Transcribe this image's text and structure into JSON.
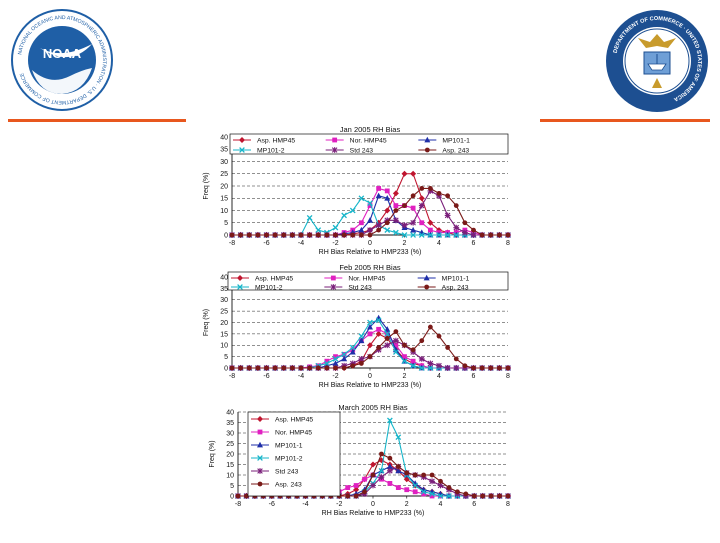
{
  "logos": {
    "noaa": {
      "center_text": "NOAA",
      "ring_text": "NATIONAL OCEANIC AND ATMOSPHERIC ADMINISTRATION · U.S. DEPARTMENT OF COMMERCE"
    },
    "commerce": {
      "ring_text": "DEPARTMENT OF COMMERCE · UNITED STATES OF AMERICA"
    }
  },
  "colors": {
    "accent": "#e8571e",
    "noaa_blue": "#1f5fa6",
    "commerce_blue": "#1d4f91"
  },
  "chart_data": [
    {
      "type": "line",
      "title": "Jan 2005 RH Bias",
      "xlabel": "RH Bias Relative to HMP233 (%)",
      "ylabel": "Freq (%)",
      "xlim": [
        -8,
        8
      ],
      "ylim": [
        0,
        40
      ],
      "xticks": [
        "-8",
        "-6",
        "-4",
        "-2",
        "0",
        "2",
        "4",
        "6",
        "8"
      ],
      "yticks": [
        "0",
        "5",
        "10",
        "15",
        "20",
        "25",
        "30",
        "35",
        "40"
      ],
      "legend": "top (3 columns)",
      "x": [
        -8,
        -7.5,
        -7,
        -6.5,
        -6,
        -5.5,
        -5,
        -4.5,
        -4,
        -3.5,
        -3,
        -2.5,
        -2,
        -1.5,
        -1,
        -0.5,
        0,
        0.5,
        1,
        1.5,
        2,
        2.5,
        3,
        3.5,
        4,
        4.5,
        5,
        5.5,
        6,
        6.5,
        7,
        7.5,
        8
      ],
      "series": [
        {
          "name": "Asp. HMP45",
          "color": "#c0152f",
          "marker": "diamond",
          "values": [
            0,
            0,
            0,
            0,
            0,
            0,
            0,
            0,
            0,
            0,
            0,
            0,
            0,
            0,
            0.5,
            1,
            2,
            5,
            10,
            17,
            25,
            25,
            15,
            5,
            2,
            1,
            0,
            0,
            0,
            0,
            0,
            0,
            0
          ]
        },
        {
          "name": "Nor. HMP45",
          "color": "#e020c0",
          "marker": "square",
          "values": [
            0,
            0,
            0,
            0,
            0,
            0,
            0,
            0,
            0,
            0,
            0,
            0,
            0,
            1,
            2,
            5,
            12,
            19,
            18,
            12,
            12,
            11,
            5,
            2,
            1,
            1,
            1,
            2,
            1,
            0,
            0,
            0,
            0
          ]
        },
        {
          "name": "MP101-1",
          "color": "#1f2fa8",
          "marker": "triangle",
          "values": [
            0,
            0,
            0,
            0,
            0,
            0,
            0,
            0,
            0,
            0,
            0,
            0,
            0,
            0.5,
            1,
            2,
            6,
            16,
            15,
            6,
            3,
            2,
            1,
            0,
            0,
            0,
            0,
            0,
            0,
            0,
            0,
            0,
            0
          ]
        },
        {
          "name": "MP101-2",
          "color": "#17b5c9",
          "marker": "x",
          "values": [
            0,
            0,
            0,
            0,
            0,
            0,
            0,
            0,
            0,
            7,
            2,
            1,
            3,
            8,
            10,
            15,
            13,
            4,
            2,
            1,
            0,
            0,
            0,
            0,
            0,
            0,
            0,
            0,
            0,
            0,
            0,
            0,
            0
          ]
        },
        {
          "name": "Std 243",
          "color": "#7a1f7a",
          "marker": "star",
          "values": [
            0,
            0,
            0,
            0,
            0,
            0,
            0,
            0,
            0,
            0,
            0,
            0,
            0,
            0,
            0,
            0,
            2,
            4,
            6,
            6,
            4,
            5,
            12,
            18,
            16,
            8,
            3,
            1,
            0,
            0,
            0,
            0,
            0
          ]
        },
        {
          "name": "Asp. 243",
          "color": "#7a1a18",
          "marker": "circle",
          "values": [
            0,
            0,
            0,
            0,
            0,
            0,
            0,
            0,
            0,
            0,
            0,
            0,
            0,
            0,
            0,
            0,
            0,
            2,
            5,
            10,
            12,
            16,
            19,
            19,
            17,
            16,
            12,
            5,
            2,
            0,
            0,
            0,
            0
          ]
        }
      ]
    },
    {
      "type": "line",
      "title": "Feb 2005 RH Bias",
      "xlabel": "RH Bias Relative to HMP233 (%)",
      "ylabel": "Freq (%)",
      "xlim": [
        -8,
        8
      ],
      "ylim": [
        0,
        40
      ],
      "xticks": [
        "-8",
        "-6",
        "-4",
        "-2",
        "0",
        "2",
        "4",
        "6",
        "8"
      ],
      "yticks": [
        "0",
        "5",
        "10",
        "15",
        "20",
        "25",
        "30",
        "35",
        "40"
      ],
      "legend": "top (3 columns)",
      "x": [
        -8,
        -7.5,
        -7,
        -6.5,
        -6,
        -5.5,
        -5,
        -4.5,
        -4,
        -3.5,
        -3,
        -2.5,
        -2,
        -1.5,
        -1,
        -0.5,
        0,
        0.5,
        1,
        1.5,
        2,
        2.5,
        3,
        3.5,
        4,
        4.5,
        5,
        5.5,
        6,
        6.5,
        7,
        7.5,
        8
      ],
      "series": [
        {
          "name": "Asp. HMP45",
          "color": "#c0152f",
          "marker": "diamond",
          "values": [
            0,
            0,
            0,
            0,
            0,
            0,
            0,
            0,
            0,
            0,
            0,
            0,
            0,
            0,
            1,
            3,
            10,
            15,
            13,
            8,
            4,
            2,
            1,
            0,
            0,
            0,
            0,
            0,
            0,
            0,
            0,
            0,
            0
          ]
        },
        {
          "name": "Nor. HMP45",
          "color": "#e020c0",
          "marker": "square",
          "values": [
            0,
            0,
            0,
            0,
            0,
            0,
            0,
            0,
            0,
            0.5,
            1,
            3,
            5,
            6,
            8,
            12,
            15,
            17,
            15,
            10,
            5,
            3,
            1,
            0,
            0,
            0,
            0,
            0,
            0,
            0,
            0,
            0,
            0
          ]
        },
        {
          "name": "MP101-1",
          "color": "#1f2fa8",
          "marker": "triangle",
          "values": [
            0,
            0,
            0,
            0,
            0,
            0,
            0,
            0,
            0,
            0,
            0,
            1,
            2,
            4,
            7,
            12,
            18,
            22,
            17,
            8,
            3,
            1,
            0,
            0,
            0,
            0,
            0,
            0,
            0,
            0,
            0,
            0,
            0
          ]
        },
        {
          "name": "MP101-2",
          "color": "#17b5c9",
          "marker": "x",
          "values": [
            0,
            0,
            0,
            0,
            0,
            0,
            0,
            0,
            0,
            0,
            1,
            2,
            4,
            6,
            9,
            14,
            20,
            21,
            15,
            7,
            3,
            1,
            0,
            0,
            0,
            0,
            0,
            0,
            0,
            0,
            0,
            0,
            0
          ]
        },
        {
          "name": "Std 243",
          "color": "#7a1f7a",
          "marker": "star",
          "values": [
            0,
            0,
            0,
            0,
            0,
            0,
            0,
            0,
            0,
            0,
            0,
            0,
            0,
            1,
            2,
            4,
            5,
            8,
            10,
            12,
            10,
            7,
            4,
            2,
            1,
            0,
            0,
            0,
            0,
            0,
            0,
            0,
            0
          ]
        },
        {
          "name": "Asp. 243",
          "color": "#7a1a18",
          "marker": "circle",
          "values": [
            0,
            0,
            0,
            0,
            0,
            0,
            0,
            0,
            0,
            0,
            0,
            0,
            0,
            0,
            1,
            2,
            5,
            9,
            13,
            16,
            10,
            8,
            12,
            18,
            14,
            9,
            4,
            1,
            0,
            0,
            0,
            0,
            0
          ]
        }
      ]
    },
    {
      "type": "line",
      "title": "March 2005 RH Bias",
      "xlabel": "RH Bias Relative to HMP233 (%)",
      "ylabel": "Freq (%)",
      "xlim": [
        -8,
        8
      ],
      "ylim": [
        0,
        40
      ],
      "xticks": [
        "-8",
        "-6",
        "-4",
        "-2",
        "0",
        "2",
        "4",
        "6",
        "8"
      ],
      "yticks": [
        "0",
        "5",
        "10",
        "15",
        "20",
        "25",
        "30",
        "35",
        "40"
      ],
      "legend": "top-left (1 column)",
      "x": [
        -8,
        -7.5,
        -7,
        -6.5,
        -6,
        -5.5,
        -5,
        -4.5,
        -4,
        -3.5,
        -3,
        -2.5,
        -2,
        -1.5,
        -1,
        -0.5,
        0,
        0.5,
        1,
        1.5,
        2,
        2.5,
        3,
        3.5,
        4,
        4.5,
        5,
        5.5,
        6,
        6.5,
        7,
        7.5,
        8
      ],
      "series": [
        {
          "name": "Asp. HMP45",
          "color": "#c0152f",
          "marker": "diamond",
          "values": [
            0,
            0,
            0,
            0,
            0,
            0,
            0,
            0,
            0,
            0,
            0,
            0,
            0,
            1,
            3,
            8,
            15,
            17,
            15,
            12,
            8,
            5,
            3,
            2,
            1,
            0,
            0,
            0,
            0,
            0,
            0,
            0,
            0
          ]
        },
        {
          "name": "Nor. HMP45",
          "color": "#e020c0",
          "marker": "square",
          "values": [
            0,
            0,
            0,
            0,
            0,
            0,
            0,
            0,
            0,
            0,
            0.5,
            1,
            2,
            4,
            5,
            8,
            10,
            8,
            6,
            4,
            3,
            2,
            1,
            0,
            0,
            0,
            0,
            0,
            0,
            0,
            0,
            0,
            0
          ]
        },
        {
          "name": "MP101-1",
          "color": "#1f2fa8",
          "marker": "triangle",
          "values": [
            0,
            0,
            0,
            0,
            0,
            0,
            0,
            0,
            0,
            0,
            0,
            0,
            0,
            0,
            1,
            3,
            10,
            12,
            14,
            12,
            10,
            6,
            3,
            2,
            1,
            0,
            0,
            0,
            0,
            0,
            0,
            0,
            0
          ]
        },
        {
          "name": "MP101-2",
          "color": "#17b5c9",
          "marker": "x",
          "values": [
            0,
            0,
            0,
            0,
            0,
            0,
            0,
            0,
            0,
            0,
            0,
            0,
            0,
            0,
            0,
            2,
            6,
            12,
            36,
            28,
            10,
            5,
            2,
            1,
            0,
            0,
            0,
            0,
            0,
            0,
            0,
            0,
            0
          ]
        },
        {
          "name": "Std 243",
          "color": "#7a1f7a",
          "marker": "star",
          "values": [
            0,
            0,
            0,
            0,
            0,
            0,
            0,
            0,
            0,
            0,
            0,
            0,
            0,
            0,
            0,
            1,
            5,
            9,
            12,
            14,
            11,
            10,
            9,
            7,
            5,
            3,
            1,
            0,
            0,
            0,
            0,
            0,
            0
          ]
        },
        {
          "name": "Asp. 243",
          "color": "#7a1a18",
          "marker": "circle",
          "values": [
            0,
            0,
            0,
            0,
            0,
            0,
            0,
            0,
            0,
            0,
            0,
            0,
            0,
            0,
            0,
            2,
            10,
            20,
            18,
            14,
            11,
            10,
            10,
            10,
            7,
            4,
            2,
            1,
            0,
            0,
            0,
            0,
            0
          ]
        }
      ]
    }
  ]
}
